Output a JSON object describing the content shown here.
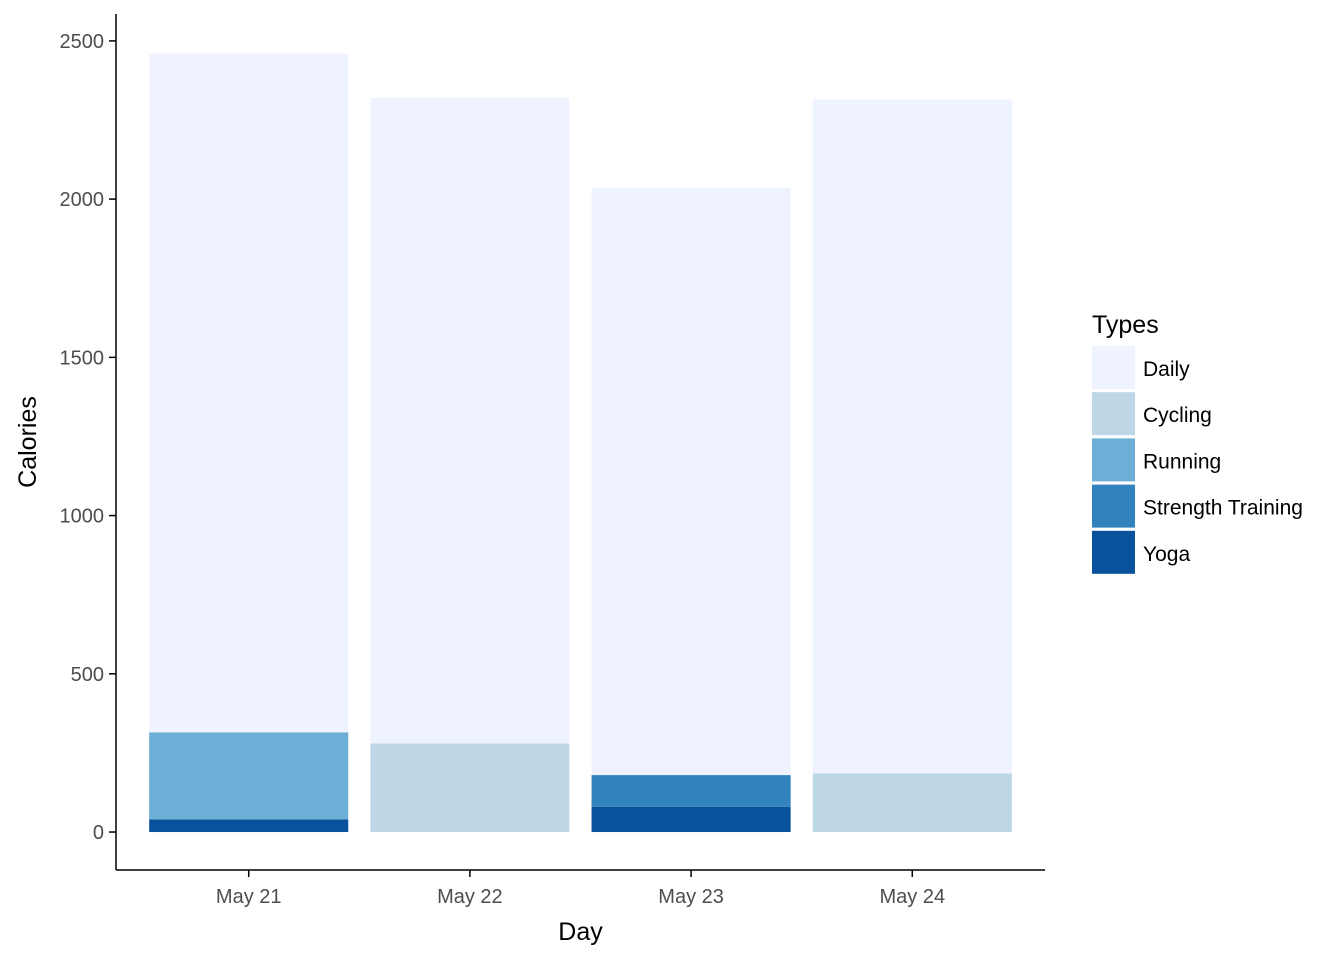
{
  "chart_data": {
    "type": "bar",
    "stacked": true,
    "categories": [
      "May 21",
      "May 22",
      "May 23",
      "May 24"
    ],
    "xlabel": "Day",
    "ylabel": "Calories",
    "ylim": [
      -120,
      2585
    ],
    "yticks": [
      0,
      500,
      1000,
      1500,
      2000,
      2500
    ],
    "grid": false,
    "legend": {
      "title": "Types",
      "position": "right"
    },
    "series": [
      {
        "name": "Yoga",
        "color": "#08519c",
        "values": [
          40,
          0,
          80,
          0
        ]
      },
      {
        "name": "Strength Training",
        "color": "#3182bd",
        "values": [
          0,
          0,
          100,
          0
        ]
      },
      {
        "name": "Running",
        "color": "#6baed6",
        "values": [
          275,
          0,
          0,
          0
        ]
      },
      {
        "name": "Cycling",
        "color": "#bdd7e7",
        "values": [
          0,
          280,
          0,
          185
        ]
      },
      {
        "name": "Daily",
        "color": "#eff3ff",
        "values": [
          2145,
          2040,
          1855,
          2130
        ]
      }
    ],
    "legend_order": [
      "Daily",
      "Cycling",
      "Running",
      "Strength Training",
      "Yoga"
    ]
  }
}
